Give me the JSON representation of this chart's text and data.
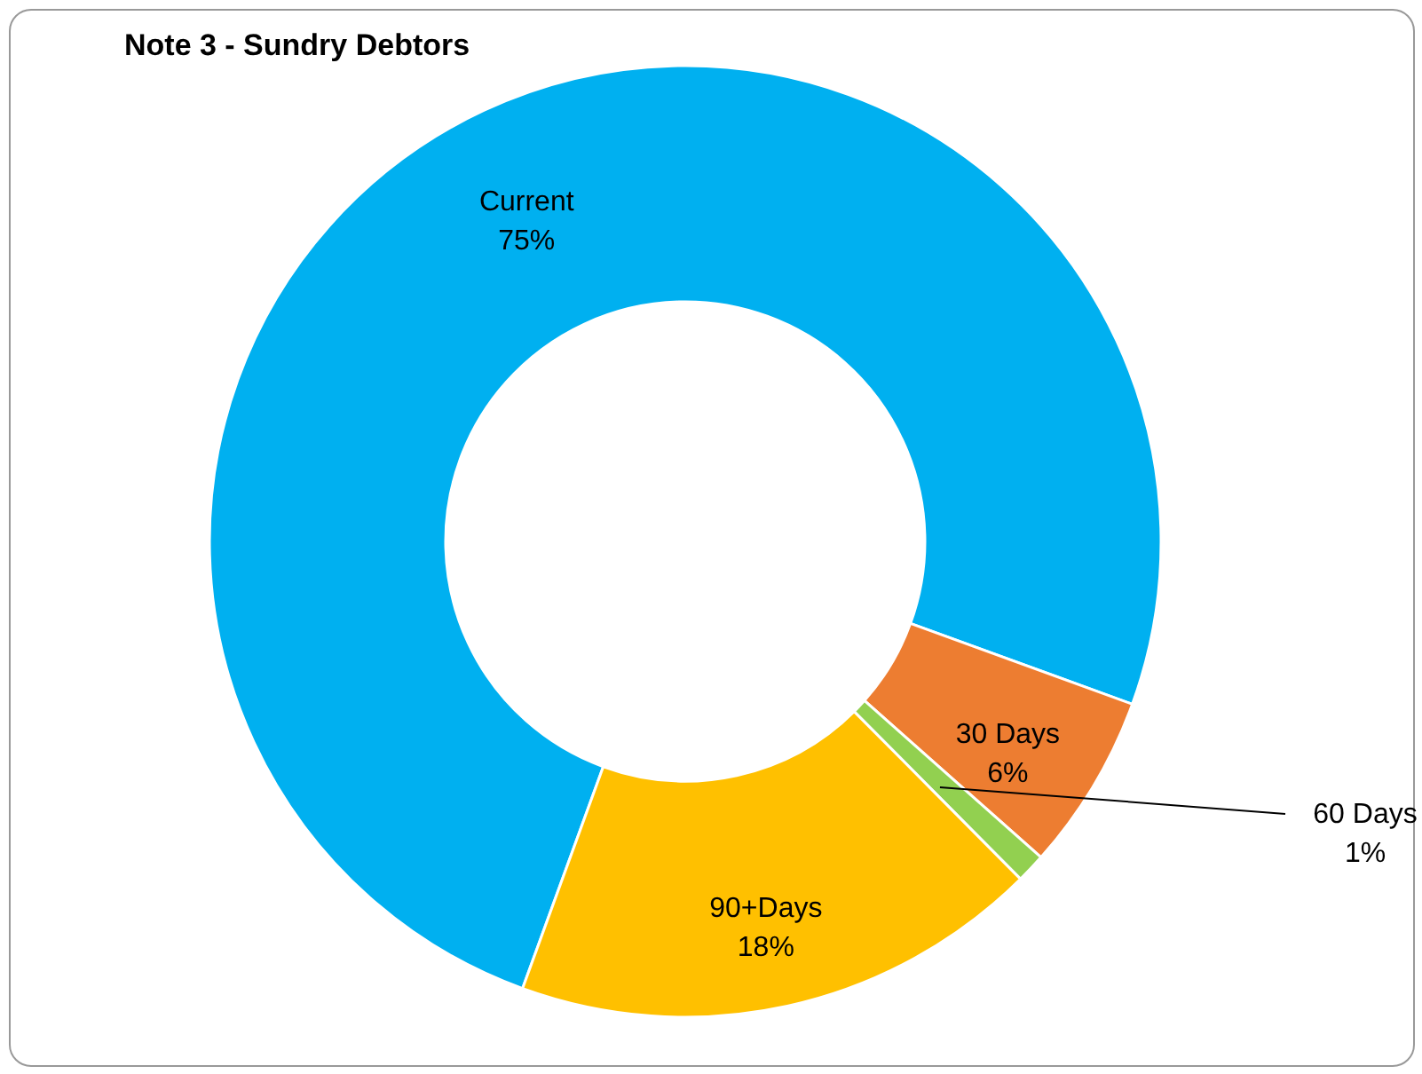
{
  "chart_data": {
    "type": "donut",
    "title": "Note 3 - Sundry Debtors",
    "categories": [
      "Current",
      "30 Days",
      "60 Days",
      "90+Days"
    ],
    "values": [
      75,
      6,
      1,
      18
    ],
    "colors": [
      "#00b0f0",
      "#ed7d31",
      "#92d050",
      "#ffc000"
    ],
    "value_labels": [
      "75%",
      "6%",
      "1%",
      "18%"
    ],
    "legend": false
  }
}
